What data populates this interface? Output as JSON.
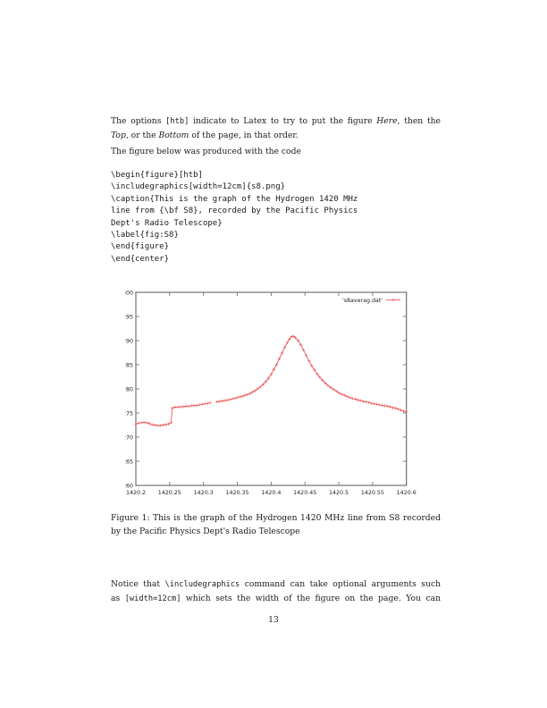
{
  "page": {
    "number": "13"
  },
  "content": {
    "para1": {
      "lines": [
        {
          "j": true,
          "segments": [
            {
              "t": "The options ",
              "s": "rm"
            },
            {
              "t": "[htb]",
              "s": "tt"
            },
            {
              "t": " indicate to Latex to try to put the figure ",
              "s": "rm"
            },
            {
              "t": "Here",
              "s": "it"
            },
            {
              "t": ", then the",
              "s": "rm"
            }
          ]
        },
        {
          "segments": [
            {
              "t": "Top",
              "s": "it"
            },
            {
              "t": ", or the ",
              "s": "rm"
            },
            {
              "t": "Bottom",
              "s": "it"
            },
            {
              "t": " of the page, in that order.",
              "s": "rm"
            }
          ]
        }
      ]
    },
    "para2": {
      "lines": [
        {
          "segments": [
            {
              "t": "The figure below was produced with the code",
              "s": "rm"
            }
          ]
        }
      ]
    },
    "code": {
      "lines": [
        "\\begin{figure}[htb]",
        "\\includegraphics[width=12cm]{s8.png}",
        "\\caption{This is the graph of the Hydrogen 1420 MHz",
        "line from {\\bf S8}, recorded by the Pacific Physics",
        "Dept's Radio Telescope}",
        "\\label{fig:S8}",
        "\\end{figure}",
        "\\end{center}"
      ]
    },
    "caption": {
      "lines": [
        {
          "j": true,
          "segments": [
            {
              "t": "Figure 1: This is the graph of the Hydrogen 1420 MHz line from S8 recorded",
              "s": "rm"
            }
          ]
        },
        {
          "segments": [
            {
              "t": "by the Pacific Physics Dept's Radio Telescope",
              "s": "rm"
            }
          ]
        }
      ]
    },
    "para3": {
      "lines": [
        {
          "j": true,
          "segments": [
            {
              "t": "Notice that ",
              "s": "rm"
            },
            {
              "t": "\\includegraphics",
              "s": "tt"
            },
            {
              "t": " command can take optional arguments such",
              "s": "rm"
            }
          ]
        },
        {
          "j": true,
          "segments": [
            {
              "t": "as ",
              "s": "rm"
            },
            {
              "t": "[width=12cm]",
              "s": "tt"
            },
            {
              "t": " which sets the width of the figure on the page.  You can",
              "s": "rm"
            }
          ]
        }
      ]
    }
  },
  "chart_data": {
    "type": "line",
    "title": "",
    "xlabel": "",
    "ylabel": "",
    "xlim": [
      1420.2,
      1420.6
    ],
    "ylim": [
      260,
      300
    ],
    "grid": false,
    "legend_position": "top-right",
    "frame_color": "#666666",
    "line_color": "#ee5a5a",
    "x_ticks": [
      1420.2,
      1420.25,
      1420.3,
      1420.35,
      1420.4,
      1420.45,
      1420.5,
      1420.55,
      1420.6
    ],
    "x_tick_labels": [
      "1420.2",
      "1420.25",
      "1420.3",
      "1420.35",
      "1420.4",
      "1420.45",
      "1420.5",
      "1420.55",
      "1420.6"
    ],
    "y_ticks": [
      260,
      265,
      270,
      275,
      280,
      285,
      290,
      295,
      300
    ],
    "y_tick_labels": [
      "260",
      "265",
      "270",
      "275",
      "280",
      "285",
      "290",
      "295",
      "300"
    ],
    "series": [
      {
        "name": "'s8averag.dat'",
        "marker": "plus",
        "segments": [
          [
            [
              1420.2,
              272.7
            ],
            [
              1420.204,
              272.9
            ],
            [
              1420.208,
              273.0
            ],
            [
              1420.212,
              273.1
            ],
            [
              1420.216,
              273.0
            ],
            [
              1420.22,
              272.8
            ],
            [
              1420.224,
              272.6
            ],
            [
              1420.228,
              272.5
            ],
            [
              1420.232,
              272.4
            ],
            [
              1420.236,
              272.4
            ],
            [
              1420.24,
              272.5
            ],
            [
              1420.244,
              272.6
            ],
            [
              1420.248,
              272.7
            ],
            [
              1420.252,
              273.0
            ],
            [
              1420.254,
              276.0
            ],
            [
              1420.258,
              276.2
            ],
            [
              1420.262,
              276.2
            ],
            [
              1420.266,
              276.3
            ],
            [
              1420.27,
              276.3
            ],
            [
              1420.274,
              276.4
            ],
            [
              1420.278,
              276.4
            ],
            [
              1420.282,
              276.5
            ],
            [
              1420.286,
              276.6
            ],
            [
              1420.29,
              276.6
            ],
            [
              1420.294,
              276.7
            ],
            [
              1420.298,
              276.8
            ],
            [
              1420.302,
              276.9
            ],
            [
              1420.306,
              277.0
            ],
            [
              1420.31,
              277.1
            ]
          ],
          [
            [
              1420.32,
              277.3
            ],
            [
              1420.324,
              277.4
            ],
            [
              1420.328,
              277.5
            ],
            [
              1420.332,
              277.6
            ],
            [
              1420.336,
              277.7
            ],
            [
              1420.34,
              277.8
            ],
            [
              1420.344,
              278.0
            ],
            [
              1420.348,
              278.1
            ],
            [
              1420.352,
              278.3
            ],
            [
              1420.356,
              278.4
            ],
            [
              1420.36,
              278.6
            ],
            [
              1420.364,
              278.8
            ],
            [
              1420.368,
              279.0
            ],
            [
              1420.372,
              279.3
            ],
            [
              1420.376,
              279.6
            ],
            [
              1420.38,
              280.0
            ],
            [
              1420.384,
              280.4
            ],
            [
              1420.388,
              280.9
            ],
            [
              1420.392,
              281.5
            ],
            [
              1420.396,
              282.2
            ],
            [
              1420.4,
              283.0
            ],
            [
              1420.404,
              284.0
            ],
            [
              1420.408,
              285.0
            ],
            [
              1420.412,
              286.2
            ],
            [
              1420.416,
              287.4
            ],
            [
              1420.42,
              288.6
            ],
            [
              1420.424,
              289.6
            ],
            [
              1420.427,
              290.3
            ],
            [
              1420.43,
              290.8
            ],
            [
              1420.433,
              290.9
            ],
            [
              1420.436,
              290.6
            ],
            [
              1420.44,
              290.0
            ],
            [
              1420.444,
              289.1
            ],
            [
              1420.448,
              288.0
            ],
            [
              1420.452,
              286.9
            ],
            [
              1420.456,
              285.8
            ],
            [
              1420.46,
              284.8
            ],
            [
              1420.464,
              283.9
            ],
            [
              1420.468,
              283.1
            ],
            [
              1420.472,
              282.4
            ],
            [
              1420.476,
              281.8
            ],
            [
              1420.48,
              281.2
            ],
            [
              1420.484,
              280.7
            ],
            [
              1420.488,
              280.3
            ],
            [
              1420.492,
              279.9
            ],
            [
              1420.496,
              279.6
            ],
            [
              1420.5,
              279.2
            ],
            [
              1420.504,
              278.9
            ],
            [
              1420.508,
              278.7
            ],
            [
              1420.512,
              278.4
            ],
            [
              1420.516,
              278.2
            ],
            [
              1420.52,
              278.0
            ],
            [
              1420.524,
              277.9
            ],
            [
              1420.528,
              277.7
            ],
            [
              1420.532,
              277.6
            ],
            [
              1420.536,
              277.4
            ],
            [
              1420.54,
              277.3
            ],
            [
              1420.544,
              277.2
            ],
            [
              1420.548,
              277.0
            ],
            [
              1420.552,
              276.9
            ],
            [
              1420.556,
              276.8
            ],
            [
              1420.56,
              276.7
            ],
            [
              1420.564,
              276.6
            ],
            [
              1420.568,
              276.5
            ],
            [
              1420.572,
              276.4
            ],
            [
              1420.576,
              276.3
            ],
            [
              1420.58,
              276.1
            ],
            [
              1420.584,
              276.0
            ],
            [
              1420.588,
              275.8
            ],
            [
              1420.592,
              275.6
            ],
            [
              1420.596,
              275.4
            ],
            [
              1420.6,
              275.2
            ]
          ]
        ]
      }
    ]
  }
}
